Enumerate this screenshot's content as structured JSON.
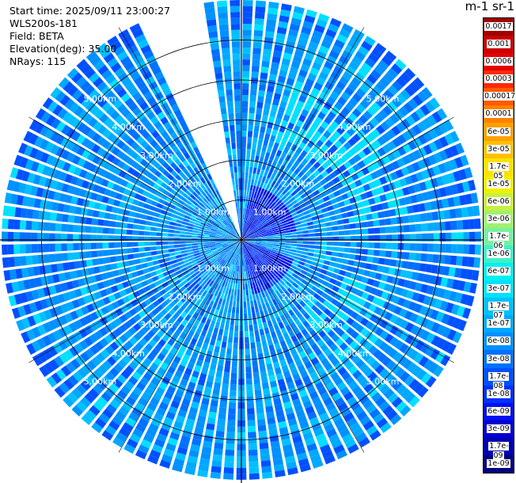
{
  "info": {
    "start_time": "Start time: 2025/09/11 23:00:27",
    "instrument": "WLS200s-181",
    "field": "Field: BETA",
    "elevation": "Elevation(deg): 35.00",
    "nrays": "NRays: 115"
  },
  "colorbar": {
    "title": "m-1 sr-1",
    "labels": [
      "0.0017",
      "0.001",
      "0.0006",
      "0.0003",
      "0.00017",
      "0.0001",
      "6e-05",
      "3e-05",
      "1.7e-05",
      "1e-05",
      "6e-06",
      "3e-06",
      "1.7e-06",
      "1e-06",
      "6e-07",
      "3e-07",
      "1.7e-07",
      "1e-07",
      "6e-08",
      "3e-08",
      "1.7e-08",
      "1e-08",
      "6e-09",
      "3e-09",
      "1.7e-09",
      "1e-09"
    ],
    "colors": [
      "#a00000",
      "#c80000",
      "#e60000",
      "#ff2a00",
      "#ff5a00",
      "#ff8000",
      "#ffa000",
      "#ffc000",
      "#ffe000",
      "#f0f000",
      "#c8f040",
      "#a0f070",
      "#78f0a0",
      "#40f0c8",
      "#00f0f0",
      "#00e0ff",
      "#00c0ff",
      "#00a8ff",
      "#0090ff",
      "#0070ff",
      "#0050ff",
      "#0030ff",
      "#0010f0",
      "#0000d0",
      "#0000b0",
      "#000080"
    ]
  },
  "chart_data": {
    "type": "heatmap",
    "projection": "polar PPI",
    "field": "BETA",
    "units": "m-1 sr-1",
    "elevation_deg": 35.0,
    "nrays": 115,
    "range_rings_km": [
      1.0,
      2.0,
      3.0,
      4.0,
      5.0
    ],
    "range_ring_labels": [
      "1.00km",
      "2.00km",
      "3.00km",
      "4.00km",
      "5.00km"
    ],
    "max_range_km": 6.0,
    "missing_sector_azimuth_deg": [
      334,
      352
    ],
    "grid": true,
    "colorbar_range": [
      1e-09,
      0.0017
    ],
    "dominant_values": "mostly 1e-08 to 3e-07; lower (~1e-09 to 1e-08) near the centre in the NE/SE quadrants"
  }
}
